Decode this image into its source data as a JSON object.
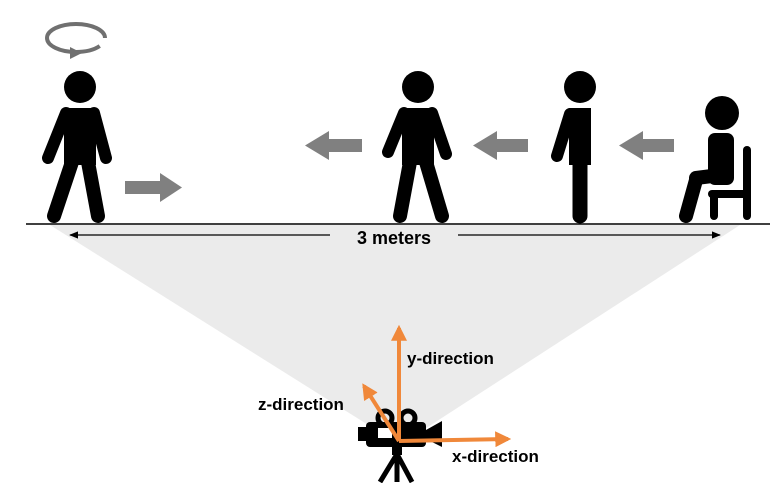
{
  "diagram": {
    "distance_label": "3 meters",
    "axes": {
      "x_label": "x-direction",
      "y_label": "y-direction",
      "z_label": "z-direction"
    }
  },
  "colors": {
    "axis_arrow": "#f0883a",
    "movement_arrow": "#808080",
    "figure": "#000000",
    "field_of_view": "#ebebeb",
    "rotation_icon": "#707070"
  },
  "icons": [
    "rotate-icon",
    "walking-person-icon",
    "standing-person-icon",
    "sitting-person-icon",
    "video-camera-icon"
  ]
}
